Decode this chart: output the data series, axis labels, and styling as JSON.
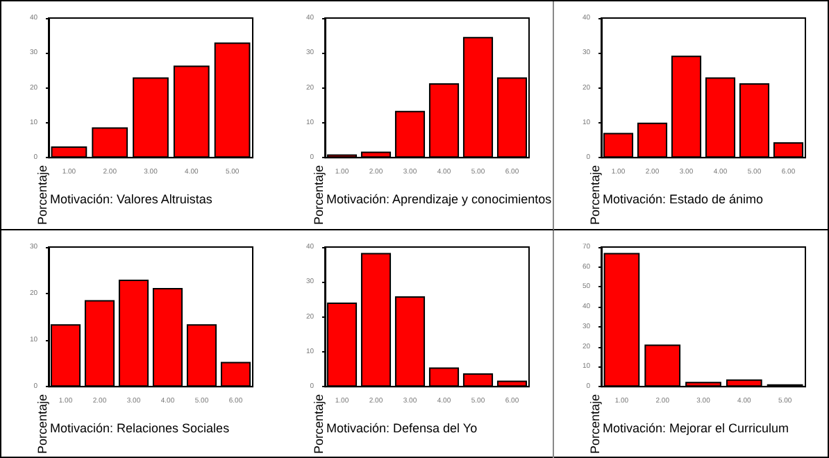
{
  "chart_data": [
    {
      "type": "bar",
      "xlabel": "Motivación: Valores Altruistas",
      "ylabel": "Porcentaje",
      "categories": [
        "1.00",
        "2.00",
        "3.00",
        "4.00",
        "5.00"
      ],
      "values": [
        3.2,
        8.7,
        23,
        26.4,
        33
      ],
      "color": "#ff0000",
      "ylim": [
        0,
        40
      ],
      "yticks": [
        0,
        10,
        20,
        30,
        40
      ]
    },
    {
      "type": "bar",
      "xlabel": "Motivación: Aprendizaje y conocimientos",
      "ylabel": "Porcentaje",
      "categories": [
        "1.00",
        "2.00",
        "3.00",
        "4.00",
        "5.00",
        "6.00"
      ],
      "values": [
        0.9,
        1.7,
        13.4,
        21.3,
        34.6,
        23
      ],
      "color": "#ff0000",
      "ylim": [
        0,
        40
      ],
      "yticks": [
        0,
        10,
        20,
        30,
        40
      ]
    },
    {
      "type": "bar",
      "xlabel": "Motivación: Estado de ánimo",
      "ylabel": "Porcentaje",
      "categories": [
        "1.00",
        "2.00",
        "3.00",
        "4.00",
        "5.00",
        "6.00"
      ],
      "values": [
        7.1,
        10,
        29.2,
        23,
        21.3,
        4.4
      ],
      "color": "#ff0000",
      "ylim": [
        0,
        40
      ],
      "yticks": [
        0,
        10,
        20,
        30,
        40
      ]
    },
    {
      "type": "bar",
      "xlabel": "Motivación: Relaciones Sociales",
      "ylabel": "Porcentaje",
      "categories": [
        "1.00",
        "2.00",
        "3.00",
        "4.00",
        "5.00",
        "6.00"
      ],
      "values": [
        13.4,
        18.6,
        23,
        21.2,
        13.4,
        5.3
      ],
      "color": "#ff0000",
      "ylim": [
        0,
        30
      ],
      "yticks": [
        0,
        10,
        20,
        30
      ]
    },
    {
      "type": "bar",
      "xlabel": "Motivación: Defensa del Yo",
      "ylabel": "Porcentaje",
      "categories": [
        "1.00",
        "2.00",
        "3.00",
        "4.00",
        "5.00",
        "6.00"
      ],
      "values": [
        24.1,
        38.3,
        25.9,
        5.5,
        3.8,
        1.7
      ],
      "color": "#ff0000",
      "ylim": [
        0,
        40
      ],
      "yticks": [
        0,
        10,
        20,
        30,
        40
      ]
    },
    {
      "type": "bar",
      "xlabel": "Motivación: Mejorar el Curriculum",
      "ylabel": "Porcentaje",
      "categories": [
        "1.00",
        "2.00",
        "3.00",
        "4.00",
        "5.00"
      ],
      "values": [
        67,
        21.1,
        2.4,
        3.6,
        1.2
      ],
      "color": "#ff0000",
      "ylim": [
        0,
        70
      ],
      "yticks": [
        0,
        10,
        20,
        30,
        40,
        50,
        60,
        70
      ]
    }
  ]
}
